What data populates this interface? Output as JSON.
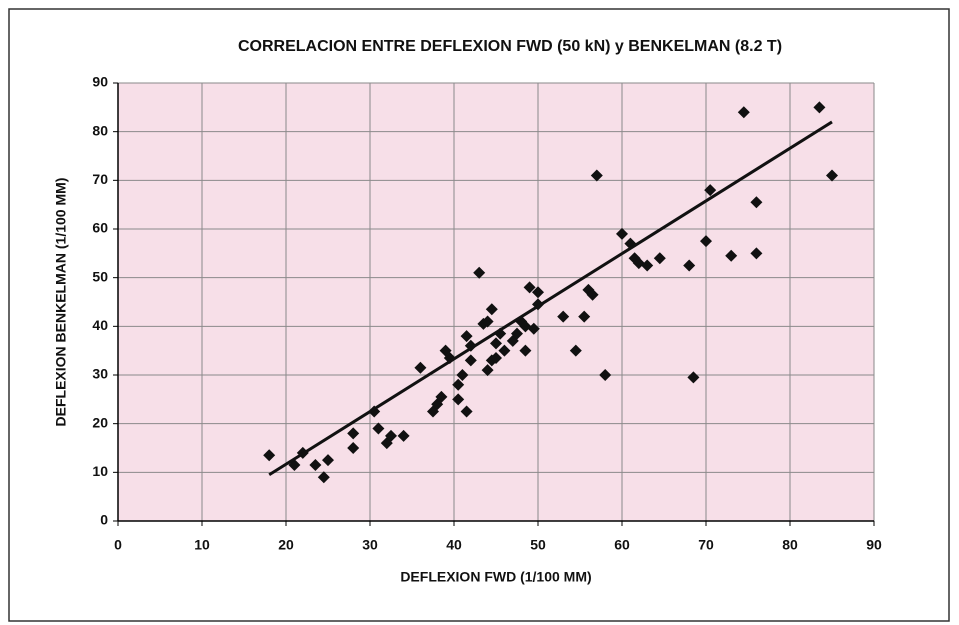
{
  "chart_data": {
    "type": "scatter",
    "title": "CORRELACION ENTRE DEFLEXION FWD (50 kN) y BENKELMAN (8.2 T)",
    "x_label": "DEFLEXION FWD (1/100 MM)",
    "y_label": "DEFLEXION BENKELMAN (1/100 MM)",
    "xlim": [
      0,
      90
    ],
    "ylim": [
      0,
      90
    ],
    "xticks": [
      0,
      10,
      20,
      30,
      40,
      50,
      60,
      70,
      80,
      90
    ],
    "yticks": [
      0,
      10,
      20,
      30,
      40,
      50,
      60,
      70,
      80,
      90
    ],
    "grid": true,
    "plot_background": "#f7dfe8",
    "series": [
      {
        "color": "#111111",
        "x": [
          18,
          21,
          22,
          23.5,
          24.5,
          25,
          28,
          28,
          30.5,
          31,
          32,
          32.5,
          34,
          36,
          37.5,
          38,
          38.5,
          39,
          39.5,
          40.5,
          40.5,
          41,
          41.5,
          41.5,
          42,
          42,
          43,
          43.5,
          44,
          44,
          44.5,
          44.5,
          45,
          45,
          45.5,
          46,
          47,
          47.5,
          48,
          48.5,
          48.5,
          49,
          49.5,
          50,
          50,
          53,
          54.5,
          55.5,
          56,
          56.5,
          57,
          58,
          60,
          61,
          61.5,
          62,
          63,
          64.5,
          68,
          68.5,
          70,
          70.5,
          73,
          74.5,
          76,
          76,
          83.5,
          85
        ],
        "values": [
          13.5,
          11.5,
          14,
          11.5,
          9,
          12.5,
          18,
          15,
          22.5,
          19,
          16,
          17.5,
          17.5,
          31.5,
          22.5,
          24,
          25.5,
          35,
          33.5,
          25,
          28,
          30,
          22.5,
          38,
          33,
          36,
          51,
          40.5,
          41,
          31,
          33,
          43.5,
          33.5,
          36.5,
          38.5,
          35,
          37,
          38.5,
          41,
          35,
          40,
          48,
          39.5,
          44.5,
          47,
          42,
          35,
          42,
          47.5,
          46.5,
          71,
          30,
          59,
          57,
          54,
          53,
          52.5,
          54,
          52.5,
          29.5,
          57.5,
          68,
          54.5,
          84,
          55,
          65.5,
          85,
          71
        ]
      },
      {
        "type": "line",
        "color": "#111111",
        "x": [
          18,
          85
        ],
        "values": [
          9.5,
          82
        ]
      }
    ]
  }
}
